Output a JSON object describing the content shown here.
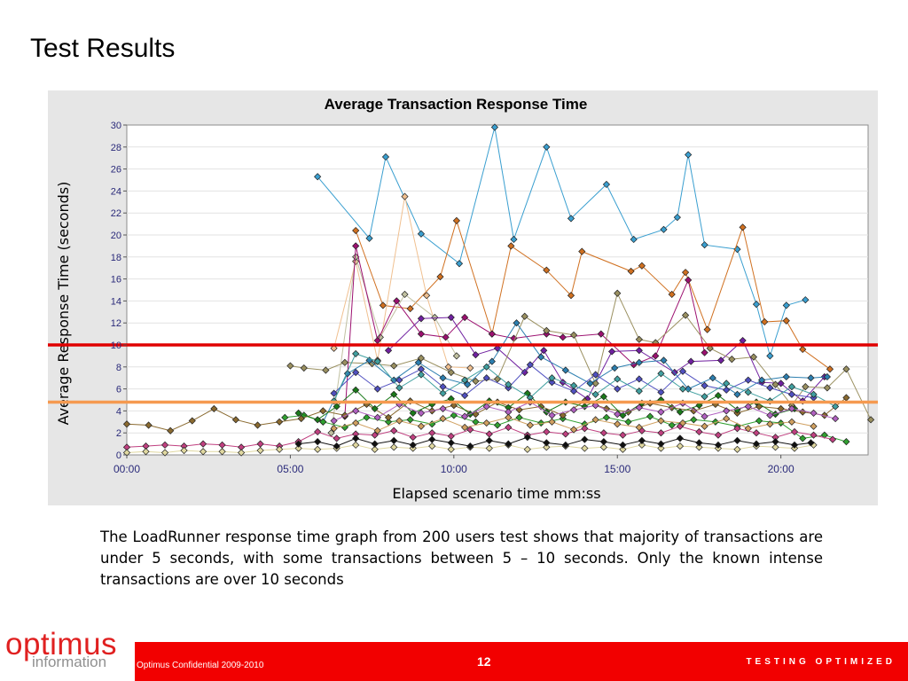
{
  "slide": {
    "title": "Test Results",
    "description": "The LoadRunner response time graph from 200 users test shows that majority of transactions are under 5 seconds, with some transactions between 5 – 10 seconds. Only the known intense transactions are over 10 seconds"
  },
  "footer": {
    "logo_main": "optimus",
    "logo_sub": "information",
    "confidential": "Optimus Confidential 2009-2010",
    "page_number": "12",
    "tagline": "TESTING OPTIMIZED"
  },
  "colors": {
    "brand_red": "#f20000",
    "threshold_high": "#e00000",
    "threshold_low": "#f59a50",
    "plot_background": "#ffffff",
    "panel_background": "#e6e6e6"
  },
  "chart_data": {
    "type": "line",
    "title": "Average Transaction Response Time",
    "xlabel": "Elapsed scenario time mm:ss",
    "ylabel": "Average Response Time (seconds)",
    "xlim": [
      "00:00",
      "22:40"
    ],
    "ylim": [
      0,
      30
    ],
    "x_ticks": [
      "00:00",
      "05:00",
      "10:00",
      "15:00",
      "20:00"
    ],
    "y_ticks": [
      0,
      2,
      4,
      6,
      8,
      10,
      12,
      14,
      16,
      18,
      20,
      22,
      24,
      26,
      28,
      30
    ],
    "grid": "horizontal",
    "legend": "none",
    "thresholds": [
      {
        "value": 10,
        "color": "#e00000"
      },
      {
        "value": 4.8,
        "color": "#f59a50"
      }
    ],
    "series": [
      {
        "color": "#3a9fd0",
        "x": [
          "05:50",
          "07:25",
          "07:55",
          "09:00",
          "10:10",
          "11:15",
          "11:50",
          "12:50",
          "13:35",
          "14:40",
          "15:30",
          "16:25",
          "16:50",
          "17:10",
          "17:40",
          "18:40",
          "19:15",
          "19:40",
          "20:10",
          "20:45"
        ],
        "y": [
          25.3,
          19.7,
          27.1,
          20.1,
          17.4,
          29.8,
          19.6,
          28.0,
          21.5,
          24.6,
          19.6,
          20.5,
          21.6,
          27.3,
          19.1,
          18.7,
          13.7,
          9.0,
          13.6,
          14.1
        ]
      },
      {
        "color": "#d07020",
        "x": [
          "07:00",
          "07:50",
          "08:40",
          "09:35",
          "10:05",
          "11:10",
          "11:45",
          "12:50",
          "13:35",
          "13:55",
          "15:25",
          "15:45",
          "16:40",
          "17:05",
          "17:45",
          "18:50",
          "19:30",
          "20:10",
          "20:40",
          "21:30"
        ],
        "y": [
          20.4,
          13.6,
          13.3,
          16.2,
          21.3,
          11.0,
          19.0,
          16.8,
          14.5,
          18.5,
          16.7,
          17.2,
          14.6,
          16.6,
          11.4,
          20.7,
          12.1,
          12.2,
          9.6,
          7.8
        ]
      },
      {
        "color": "#f0c090",
        "x": [
          "06:20",
          "07:00",
          "07:40",
          "08:30",
          "09:10",
          "09:50",
          "10:30"
        ],
        "y": [
          9.7,
          17.6,
          8.6,
          23.5,
          14.5,
          8.0,
          7.9
        ]
      },
      {
        "color": "#c0c0a0",
        "x": [
          "06:15",
          "07:00",
          "07:45",
          "08:30",
          "09:25",
          "10:05"
        ],
        "y": [
          2.0,
          18.0,
          10.7,
          14.6,
          12.5,
          9.0
        ]
      },
      {
        "color": "#9c1070",
        "x": [
          "06:40",
          "07:00",
          "07:40",
          "08:15",
          "09:00",
          "09:45",
          "10:20",
          "11:10",
          "11:50",
          "12:50",
          "13:20",
          "14:30",
          "15:30",
          "16:10",
          "17:10",
          "17:40"
        ],
        "y": [
          3.5,
          19.0,
          10.4,
          14.0,
          11.0,
          10.7,
          12.5,
          11.0,
          10.6,
          11.0,
          10.7,
          11.0,
          8.2,
          9.0,
          15.9,
          9.3
        ]
      },
      {
        "color": "#7020a0",
        "x": [
          "08:00",
          "09:00",
          "09:55",
          "10:40",
          "11:20",
          "12:10",
          "12:45",
          "13:20",
          "14:05",
          "14:50",
          "15:40",
          "16:45",
          "17:15",
          "18:10",
          "18:50",
          "19:25",
          "20:00",
          "20:40",
          "21:20"
        ],
        "y": [
          9.5,
          12.4,
          12.5,
          9.1,
          9.7,
          7.5,
          9.5,
          6.6,
          5.1,
          9.4,
          9.5,
          7.5,
          8.5,
          8.6,
          10.4,
          6.6,
          6.5,
          4.9,
          7.1
        ]
      },
      {
        "color": "#9a9060",
        "x": [
          "05:00",
          "05:25",
          "06:05",
          "06:40",
          "07:30",
          "08:10",
          "09:00",
          "09:55",
          "10:40",
          "11:20",
          "12:10",
          "12:50",
          "13:40",
          "14:20",
          "15:00",
          "15:40",
          "16:10",
          "17:05",
          "17:50",
          "18:30",
          "19:10",
          "19:50",
          "20:20",
          "20:45",
          "21:25",
          "22:00",
          "22:45"
        ],
        "y": [
          8.1,
          7.9,
          7.7,
          8.4,
          8.3,
          8.1,
          8.8,
          7.5,
          6.7,
          6.9,
          12.6,
          11.3,
          10.9,
          6.5,
          14.7,
          10.5,
          10.2,
          12.7,
          9.7,
          8.7,
          8.9,
          6.4,
          4.5,
          6.2,
          6.1,
          7.8,
          3.2
        ]
      },
      {
        "color": "#2c7fb0",
        "x": [
          "06:00",
          "06:45",
          "07:25",
          "08:10",
          "08:55",
          "09:40",
          "10:25",
          "11:10",
          "11:55",
          "12:40",
          "13:25",
          "14:10",
          "14:55",
          "15:40",
          "16:25",
          "17:10",
          "17:55",
          "18:40",
          "19:25",
          "20:10",
          "20:55",
          "21:25"
        ],
        "y": [
          3.0,
          7.4,
          8.6,
          6.8,
          8.4,
          7.0,
          6.4,
          8.5,
          12.0,
          8.9,
          7.7,
          6.5,
          7.9,
          8.4,
          8.6,
          6.0,
          7.0,
          5.5,
          6.8,
          7.1,
          7.0,
          7.1
        ]
      },
      {
        "color": "#30a030",
        "x": [
          "04:50",
          "05:25",
          "06:00",
          "06:40",
          "07:20",
          "08:00",
          "08:40",
          "09:20",
          "10:00",
          "10:40",
          "11:20",
          "12:00",
          "12:40",
          "13:20",
          "14:00",
          "14:40",
          "15:20",
          "16:00",
          "16:40",
          "17:20",
          "18:00",
          "18:40",
          "19:20",
          "20:00",
          "20:40",
          "21:20",
          "22:00"
        ],
        "y": [
          3.4,
          3.6,
          3.0,
          2.5,
          3.4,
          3.0,
          3.2,
          2.8,
          3.6,
          3.0,
          2.7,
          3.4,
          2.9,
          3.3,
          2.8,
          3.4,
          3.0,
          3.5,
          2.7,
          3.2,
          3.0,
          2.6,
          3.1,
          2.9,
          1.5,
          1.8,
          1.2
        ]
      },
      {
        "color": "#c04080",
        "x": [
          "00:00",
          "00:35",
          "01:10",
          "01:45",
          "02:20",
          "02:55",
          "03:30",
          "04:05",
          "04:40",
          "05:15",
          "05:50",
          "06:25",
          "07:00",
          "07:35",
          "08:10",
          "08:45",
          "09:20",
          "09:55",
          "10:30",
          "11:05",
          "11:40",
          "12:15",
          "12:50",
          "13:25",
          "14:00",
          "14:35",
          "15:10",
          "15:45",
          "16:20",
          "16:55",
          "17:30",
          "18:05",
          "18:40",
          "19:15",
          "19:50",
          "20:25",
          "21:00",
          "21:35"
        ],
        "y": [
          0.7,
          0.8,
          0.9,
          0.8,
          1.0,
          0.9,
          0.7,
          1.0,
          0.8,
          1.2,
          2.1,
          1.5,
          1.9,
          1.8,
          2.2,
          1.6,
          2.0,
          1.7,
          2.3,
          1.9,
          2.5,
          1.8,
          2.1,
          1.9,
          2.4,
          2.0,
          1.8,
          2.2,
          2.0,
          2.6,
          2.1,
          1.8,
          2.4,
          2.0,
          1.6,
          2.1,
          1.8,
          1.4
        ]
      },
      {
        "color": "#e0d8a0",
        "x": [
          "00:00",
          "00:35",
          "01:10",
          "01:45",
          "02:20",
          "02:55",
          "03:30",
          "04:05",
          "04:40",
          "05:15",
          "05:50",
          "06:25",
          "07:00",
          "07:35",
          "08:10",
          "08:45",
          "09:20",
          "09:55",
          "10:30",
          "11:05",
          "11:40",
          "12:15",
          "12:50",
          "13:25",
          "14:00",
          "14:35",
          "15:10",
          "15:45",
          "16:20",
          "16:55",
          "17:30",
          "18:05",
          "18:40",
          "19:15",
          "19:50",
          "20:25",
          "21:00"
        ],
        "y": [
          0.2,
          0.3,
          0.2,
          0.4,
          0.3,
          0.3,
          0.2,
          0.4,
          0.5,
          0.6,
          0.5,
          0.6,
          0.9,
          0.5,
          0.7,
          0.6,
          0.8,
          0.5,
          0.7,
          0.6,
          0.9,
          0.5,
          0.7,
          0.8,
          0.6,
          0.7,
          0.5,
          0.9,
          0.6,
          0.8,
          0.7,
          0.6,
          0.5,
          0.8,
          0.7,
          0.6,
          0.9
        ]
      },
      {
        "color": "#8a6a30",
        "x": [
          "00:00",
          "00:40",
          "01:20",
          "02:00",
          "02:40",
          "03:20",
          "04:00",
          "04:40",
          "05:20",
          "06:00",
          "06:40",
          "07:20",
          "08:00",
          "08:40",
          "09:20",
          "10:00",
          "10:40",
          "11:20",
          "12:00",
          "12:40",
          "13:20",
          "14:00",
          "14:40",
          "15:20",
          "16:00",
          "16:40",
          "17:20",
          "18:00",
          "18:40",
          "19:20",
          "20:00",
          "20:40",
          "21:20",
          "22:00"
        ],
        "y": [
          2.8,
          2.7,
          2.2,
          3.1,
          4.2,
          3.2,
          2.7,
          3.0,
          3.3,
          4.0,
          3.6,
          4.6,
          3.4,
          4.9,
          4.0,
          4.5,
          3.7,
          4.8,
          4.1,
          4.4,
          3.6,
          4.9,
          4.2,
          3.9,
          4.7,
          4.3,
          4.0,
          4.6,
          3.8,
          4.4,
          4.2,
          3.9,
          3.6,
          5.2
        ]
      },
      {
        "color": "#101010",
        "x": [
          "05:15",
          "05:50",
          "06:25",
          "07:00",
          "07:35",
          "08:10",
          "08:45",
          "09:20",
          "09:55",
          "10:30",
          "11:05",
          "11:40",
          "12:15",
          "12:50",
          "13:25",
          "14:00",
          "14:35",
          "15:10",
          "15:45",
          "16:20",
          "16:55",
          "17:30",
          "18:05",
          "18:40",
          "19:15",
          "19:50",
          "20:25",
          "20:55"
        ],
        "y": [
          1.0,
          1.2,
          0.8,
          1.5,
          1.0,
          1.3,
          0.9,
          1.4,
          1.1,
          0.8,
          1.3,
          1.0,
          1.6,
          1.1,
          0.9,
          1.4,
          1.2,
          0.9,
          1.3,
          1.0,
          1.5,
          1.1,
          0.9,
          1.3,
          1.0,
          1.2,
          0.9,
          1.1
        ]
      },
      {
        "color": "#1a7a1a",
        "x": [
          "05:15",
          "05:50",
          "06:25",
          "07:00",
          "07:35",
          "08:10",
          "08:45",
          "09:20",
          "09:55",
          "10:30",
          "11:05",
          "11:40",
          "12:15",
          "12:50",
          "13:25",
          "14:00",
          "14:35",
          "15:10",
          "15:45",
          "16:20",
          "16:55",
          "17:30",
          "18:05",
          "18:40",
          "19:15",
          "19:50",
          "20:25"
        ],
        "y": [
          3.8,
          3.2,
          4.4,
          5.9,
          4.2,
          5.5,
          3.8,
          4.6,
          5.1,
          3.7,
          4.9,
          4.3,
          5.6,
          3.9,
          4.8,
          4.4,
          5.3,
          3.6,
          4.7,
          5.0,
          3.9,
          4.5,
          5.4,
          4.1,
          4.8,
          3.7,
          4.2
        ]
      },
      {
        "color": "#5050c0",
        "x": [
          "06:20",
          "07:00",
          "07:40",
          "08:20",
          "09:00",
          "09:40",
          "10:20",
          "11:00",
          "11:40",
          "12:20",
          "13:00",
          "13:40",
          "14:20",
          "15:00",
          "15:40",
          "16:20",
          "17:00",
          "17:40",
          "18:20",
          "19:00",
          "19:40",
          "20:20",
          "21:00"
        ],
        "y": [
          5.6,
          7.5,
          6.0,
          6.8,
          7.8,
          6.2,
          5.4,
          7.0,
          6.1,
          8.2,
          6.6,
          5.8,
          7.3,
          6.0,
          6.9,
          5.7,
          7.6,
          6.3,
          5.9,
          6.8,
          6.1,
          5.5,
          5.2
        ]
      },
      {
        "color": "#40a0a0",
        "x": [
          "06:20",
          "07:00",
          "07:40",
          "08:20",
          "09:00",
          "09:40",
          "10:20",
          "11:00",
          "11:40",
          "12:20",
          "13:00",
          "13:40",
          "14:20",
          "15:00",
          "15:40",
          "16:20",
          "17:00",
          "17:40",
          "18:20",
          "19:00",
          "19:40",
          "20:20",
          "21:00",
          "21:40"
        ],
        "y": [
          4.9,
          9.2,
          8.5,
          6.1,
          7.3,
          5.6,
          6.8,
          8.0,
          6.4,
          5.2,
          7.0,
          6.3,
          5.5,
          6.9,
          5.8,
          7.4,
          6.0,
          5.3,
          6.5,
          5.7,
          4.9,
          6.2,
          5.5,
          4.4
        ]
      },
      {
        "color": "#b060c0",
        "x": [
          "06:20",
          "07:00",
          "07:40",
          "08:20",
          "09:00",
          "09:40",
          "10:20",
          "11:00",
          "11:40",
          "12:20",
          "13:00",
          "13:40",
          "14:20",
          "15:00",
          "15:40",
          "16:20",
          "17:00",
          "17:40",
          "18:20",
          "19:00",
          "19:40",
          "20:20",
          "21:00",
          "21:40"
        ],
        "y": [
          3.1,
          4.0,
          3.4,
          4.6,
          3.8,
          4.2,
          3.5,
          4.4,
          3.9,
          4.8,
          3.6,
          4.1,
          4.5,
          3.7,
          4.3,
          3.9,
          4.7,
          3.5,
          4.0,
          4.4,
          3.6,
          4.2,
          3.8,
          3.3
        ]
      },
      {
        "color": "#d0a060",
        "x": [
          "06:20",
          "07:00",
          "07:40",
          "08:20",
          "09:00",
          "09:40",
          "10:20",
          "11:00",
          "11:40",
          "12:20",
          "13:00",
          "13:40",
          "14:20",
          "15:00",
          "15:40",
          "16:20",
          "17:00",
          "17:40",
          "18:20",
          "19:00",
          "19:40",
          "20:20",
          "21:00"
        ],
        "y": [
          2.4,
          2.9,
          2.2,
          3.1,
          2.6,
          3.3,
          2.5,
          2.9,
          3.4,
          2.7,
          3.0,
          2.3,
          3.2,
          2.8,
          2.5,
          3.1,
          2.9,
          2.6,
          3.3,
          2.4,
          2.8,
          3.0,
          2.6
        ]
      }
    ]
  }
}
